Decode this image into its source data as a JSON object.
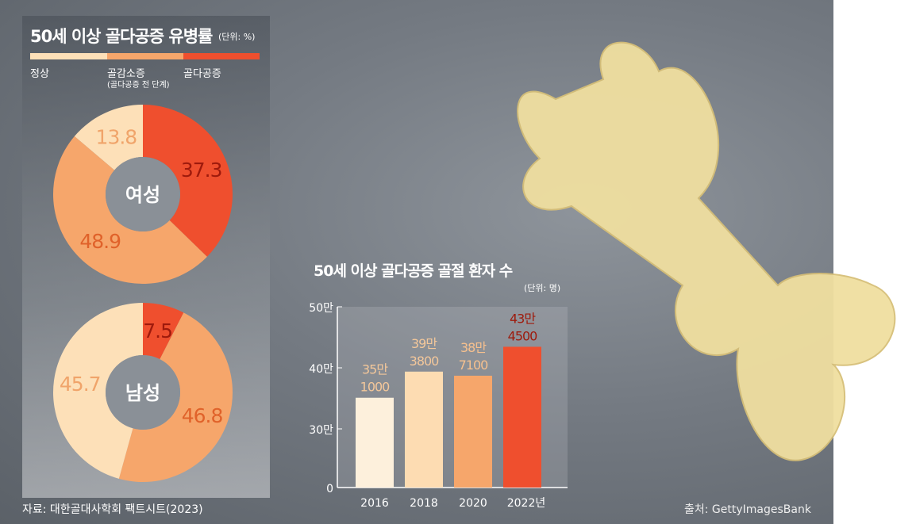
{
  "colors": {
    "normal": "#fde0b8",
    "osteopenia": "#f6a66b",
    "osteoporosis": "#ef4f2e",
    "dark_label": "#9e1a0c"
  },
  "chart_data": [
    {
      "type": "pie",
      "title": "50세 이상 골다공증 유병률",
      "unit": "(단위: %)",
      "legend": [
        "정상",
        "골감소증",
        "골다공증"
      ],
      "legend_note": "(골다공증 전 단계)",
      "donuts": [
        {
          "center_label": "여성",
          "slices": [
            {
              "name": "골다공증",
              "value": 37.3
            },
            {
              "name": "골감소증",
              "value": 48.9
            },
            {
              "name": "정상",
              "value": 13.8
            }
          ]
        },
        {
          "center_label": "남성",
          "slices": [
            {
              "name": "골다공증",
              "value": 7.5
            },
            {
              "name": "골감소증",
              "value": 46.8
            },
            {
              "name": "정상",
              "value": 45.7
            }
          ]
        }
      ]
    },
    {
      "type": "bar",
      "title": "50세 이상 골다공증 골절 환자 수",
      "unit": "(단위: 명)",
      "categories": [
        "2016",
        "2018",
        "2020",
        "2022년"
      ],
      "values": [
        351000,
        393800,
        387100,
        434500
      ],
      "value_labels": [
        [
          "35만",
          "1000"
        ],
        [
          "39만",
          "3800"
        ],
        [
          "38만",
          "7100"
        ],
        [
          "43만",
          "4500"
        ]
      ],
      "yticks": [
        {
          "v": 0,
          "label": "0"
        },
        {
          "v": 300000,
          "label": "30만"
        },
        {
          "v": 400000,
          "label": "40만"
        },
        {
          "v": 500000,
          "label": "50만"
        }
      ],
      "axis_break": [
        0,
        300000
      ]
    }
  ],
  "source": "자료: 대한골대사학회 팩트시트(2023)",
  "credit": "출처: GettyImagesBank"
}
